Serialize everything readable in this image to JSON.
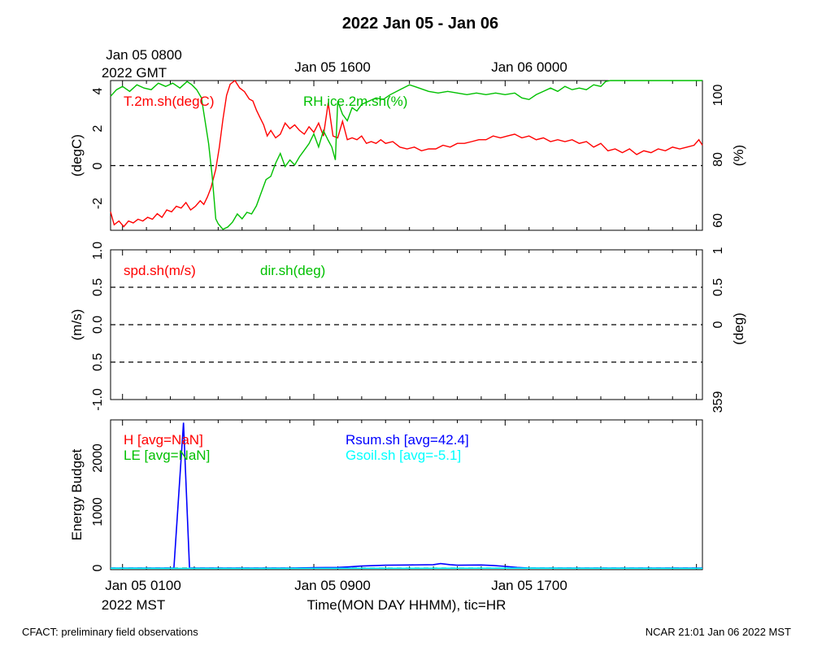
{
  "title": "2022 Jan 05 - Jan 06",
  "top_axis": {
    "labels": [
      {
        "line1": "Jan 05 0800",
        "line2": "2022 GMT"
      },
      {
        "line1": "Jan 05 1600",
        "line2": ""
      },
      {
        "line1": "Jan 06 0000",
        "line2": ""
      }
    ]
  },
  "bottom_axis": {
    "labels": [
      {
        "line1": "Jan 05 0100",
        "line2": "2022 MST"
      },
      {
        "line1": "Jan 05 0900",
        "line2": ""
      },
      {
        "line1": "Jan 05 1700",
        "line2": ""
      }
    ],
    "xlabel": "Time(MON DAY HHMM), tic=HR"
  },
  "footer": {
    "left": "CFACT: preliminary field observations",
    "right": "NCAR 21:01 Jan 06 2022 MST"
  },
  "colors": {
    "red": "#ff0000",
    "green": "#00c000",
    "blue": "#0000ff",
    "cyan": "#00ffff",
    "black": "#000000"
  },
  "chart_data": [
    {
      "type": "line",
      "panel": "temperature-humidity",
      "x_unit": "hours since Jan 05 0000 MST",
      "xlim": [
        0.5,
        25.25
      ],
      "ylabel_left": "(degC)",
      "ylabel_right": "(%)",
      "ylim_left": [
        -3.5,
        4.6
      ],
      "ylim_right": [
        58.5,
        104.3
      ],
      "yticks_left": [
        "-2",
        "0",
        "2",
        "4"
      ],
      "yticks_right": [
        "60",
        "80",
        "100"
      ],
      "reference_line_left": 0,
      "series": [
        {
          "name": "T.2m.sh(degC)",
          "axis": "left",
          "color": "#ff0000",
          "points": [
            [
              0.5,
              -2.5
            ],
            [
              0.65,
              -3.2
            ],
            [
              0.85,
              -3.0
            ],
            [
              1.05,
              -3.3
            ],
            [
              1.25,
              -3.0
            ],
            [
              1.45,
              -3.1
            ],
            [
              1.65,
              -2.9
            ],
            [
              1.85,
              -3.0
            ],
            [
              2.05,
              -2.8
            ],
            [
              2.25,
              -2.9
            ],
            [
              2.45,
              -2.6
            ],
            [
              2.65,
              -2.8
            ],
            [
              2.85,
              -2.4
            ],
            [
              3.05,
              -2.5
            ],
            [
              3.25,
              -2.2
            ],
            [
              3.45,
              -2.3
            ],
            [
              3.65,
              -2.0
            ],
            [
              3.85,
              -2.4
            ],
            [
              4.05,
              -2.2
            ],
            [
              4.25,
              -1.9
            ],
            [
              4.4,
              -2.1
            ],
            [
              4.55,
              -1.7
            ],
            [
              4.7,
              -1.2
            ],
            [
              4.9,
              -0.2
            ],
            [
              5.05,
              1.0
            ],
            [
              5.2,
              2.5
            ],
            [
              5.35,
              3.8
            ],
            [
              5.5,
              4.4
            ],
            [
              5.7,
              4.6
            ],
            [
              5.9,
              4.2
            ],
            [
              6.1,
              4.0
            ],
            [
              6.3,
              3.6
            ],
            [
              6.45,
              3.5
            ],
            [
              6.6,
              3.0
            ],
            [
              6.75,
              2.6
            ],
            [
              6.9,
              2.2
            ],
            [
              7.05,
              1.6
            ],
            [
              7.2,
              1.9
            ],
            [
              7.4,
              1.5
            ],
            [
              7.6,
              1.7
            ],
            [
              7.8,
              2.3
            ],
            [
              8.0,
              2.0
            ],
            [
              8.2,
              2.2
            ],
            [
              8.4,
              1.9
            ],
            [
              8.6,
              1.7
            ],
            [
              8.8,
              2.1
            ],
            [
              9.0,
              1.8
            ],
            [
              9.2,
              2.3
            ],
            [
              9.4,
              1.6
            ],
            [
              9.6,
              3.4
            ],
            [
              9.8,
              1.6
            ],
            [
              10.0,
              1.5
            ],
            [
              10.2,
              2.4
            ],
            [
              10.4,
              1.4
            ],
            [
              10.6,
              1.5
            ],
            [
              10.8,
              1.4
            ],
            [
              11.0,
              1.6
            ],
            [
              11.2,
              1.2
            ],
            [
              11.4,
              1.3
            ],
            [
              11.6,
              1.2
            ],
            [
              11.8,
              1.4
            ],
            [
              12.0,
              1.2
            ],
            [
              12.3,
              1.3
            ],
            [
              12.6,
              1.0
            ],
            [
              12.9,
              0.9
            ],
            [
              13.2,
              1.0
            ],
            [
              13.5,
              0.8
            ],
            [
              13.8,
              0.9
            ],
            [
              14.1,
              0.9
            ],
            [
              14.4,
              1.1
            ],
            [
              14.7,
              1.0
            ],
            [
              15.0,
              1.2
            ],
            [
              15.3,
              1.2
            ],
            [
              15.6,
              1.3
            ],
            [
              15.9,
              1.4
            ],
            [
              16.2,
              1.4
            ],
            [
              16.5,
              1.6
            ],
            [
              16.8,
              1.5
            ],
            [
              17.1,
              1.6
            ],
            [
              17.4,
              1.7
            ],
            [
              17.7,
              1.5
            ],
            [
              18.0,
              1.6
            ],
            [
              18.3,
              1.4
            ],
            [
              18.6,
              1.5
            ],
            [
              18.9,
              1.3
            ],
            [
              19.2,
              1.4
            ],
            [
              19.5,
              1.3
            ],
            [
              19.8,
              1.4
            ],
            [
              20.1,
              1.2
            ],
            [
              20.4,
              1.3
            ],
            [
              20.7,
              1.0
            ],
            [
              21.0,
              1.2
            ],
            [
              21.3,
              0.8
            ],
            [
              21.6,
              0.9
            ],
            [
              21.9,
              0.7
            ],
            [
              22.2,
              0.9
            ],
            [
              22.5,
              0.6
            ],
            [
              22.8,
              0.8
            ],
            [
              23.1,
              0.7
            ],
            [
              23.4,
              0.9
            ],
            [
              23.7,
              0.8
            ],
            [
              24.0,
              1.0
            ],
            [
              24.3,
              0.9
            ],
            [
              24.6,
              1.0
            ],
            [
              24.9,
              1.1
            ],
            [
              25.1,
              1.4
            ],
            [
              25.25,
              1.1
            ]
          ]
        },
        {
          "name": "RH.ice.2m.sh(%)",
          "axis": "right",
          "color": "#00c000",
          "points": [
            [
              0.5,
              99.5
            ],
            [
              0.75,
              101.5
            ],
            [
              1.0,
              102.5
            ],
            [
              1.3,
              101.0
            ],
            [
              1.6,
              103.0
            ],
            [
              1.9,
              102.0
            ],
            [
              2.2,
              101.5
            ],
            [
              2.5,
              103.5
            ],
            [
              2.8,
              102.5
            ],
            [
              3.1,
              103.5
            ],
            [
              3.4,
              102.0
            ],
            [
              3.7,
              104.0
            ],
            [
              3.9,
              103.0
            ],
            [
              4.1,
              101.5
            ],
            [
              4.3,
              99.0
            ],
            [
              4.45,
              92.0
            ],
            [
              4.6,
              85.0
            ],
            [
              4.75,
              75.0
            ],
            [
              4.9,
              62.0
            ],
            [
              5.0,
              60.5
            ],
            [
              5.2,
              58.8
            ],
            [
              5.4,
              59.5
            ],
            [
              5.6,
              61.0
            ],
            [
              5.8,
              63.5
            ],
            [
              6.0,
              62.0
            ],
            [
              6.2,
              64.0
            ],
            [
              6.4,
              63.5
            ],
            [
              6.6,
              66.0
            ],
            [
              6.8,
              70.0
            ],
            [
              7.0,
              74.0
            ],
            [
              7.2,
              75.0
            ],
            [
              7.4,
              79.0
            ],
            [
              7.6,
              82.0
            ],
            [
              7.8,
              78.0
            ],
            [
              8.0,
              80.0
            ],
            [
              8.2,
              78.5
            ],
            [
              8.4,
              81.0
            ],
            [
              8.6,
              83.0
            ],
            [
              8.8,
              85.0
            ],
            [
              9.0,
              88.0
            ],
            [
              9.2,
              84.0
            ],
            [
              9.4,
              89.0
            ],
            [
              9.6,
              86.0
            ],
            [
              9.75,
              84.0
            ],
            [
              9.9,
              80.0
            ],
            [
              10.0,
              98.0
            ],
            [
              10.2,
              94.0
            ],
            [
              10.4,
              92.0
            ],
            [
              10.6,
              96.0
            ],
            [
              10.8,
              95.0
            ],
            [
              11.0,
              97.0
            ],
            [
              11.3,
              98.0
            ],
            [
              11.6,
              99.0
            ],
            [
              11.9,
              98.5
            ],
            [
              12.2,
              100.0
            ],
            [
              12.6,
              101.5
            ],
            [
              13.0,
              103.0
            ],
            [
              13.4,
              102.0
            ],
            [
              13.8,
              101.0
            ],
            [
              14.2,
              100.5
            ],
            [
              14.6,
              101.0
            ],
            [
              15.0,
              100.5
            ],
            [
              15.4,
              100.0
            ],
            [
              15.8,
              100.5
            ],
            [
              16.2,
              100.0
            ],
            [
              16.6,
              100.5
            ],
            [
              17.0,
              100.0
            ],
            [
              17.4,
              100.5
            ],
            [
              17.7,
              99.0
            ],
            [
              18.0,
              98.5
            ],
            [
              18.3,
              100.0
            ],
            [
              18.6,
              101.0
            ],
            [
              18.9,
              102.0
            ],
            [
              19.2,
              101.0
            ],
            [
              19.5,
              102.5
            ],
            [
              19.8,
              101.5
            ],
            [
              20.1,
              102.0
            ],
            [
              20.4,
              101.5
            ],
            [
              20.7,
              103.0
            ],
            [
              21.0,
              102.5
            ],
            [
              21.2,
              104.0
            ],
            [
              21.4,
              104.3
            ],
            [
              21.8,
              104.3
            ],
            [
              22.2,
              104.3
            ],
            [
              22.6,
              104.3
            ],
            [
              23.0,
              104.3
            ],
            [
              23.4,
              104.3
            ],
            [
              23.8,
              104.3
            ],
            [
              24.2,
              104.3
            ],
            [
              24.6,
              104.3
            ],
            [
              25.0,
              104.3
            ],
            [
              25.25,
              104.3
            ]
          ]
        }
      ]
    },
    {
      "type": "line",
      "panel": "wind",
      "xlim": [
        0.5,
        25.25
      ],
      "ylabel_left": "(m/s)",
      "ylabel_right": "(deg)",
      "ylim_left": [
        -1.0,
        1.0
      ],
      "yticks_left": [
        "-1.0",
        "0.5",
        "0.0",
        "0.5",
        "1.0"
      ],
      "yticks_right": [
        "359",
        "0",
        "0.5",
        "1"
      ],
      "reference_lines_left": [
        -0.5,
        0.0,
        0.5
      ],
      "series": [
        {
          "name": "spd.sh(m/s)",
          "axis": "left",
          "color": "#ff0000",
          "points": []
        },
        {
          "name": "dir.sh(deg)",
          "axis": "right",
          "color": "#00c000",
          "points": []
        }
      ]
    },
    {
      "type": "line",
      "panel": "energy-budget",
      "xlim": [
        0.5,
        25.25
      ],
      "ylabel_left": "Energy Budget",
      "ylim_left": [
        -30,
        2700
      ],
      "yticks_left": [
        "0",
        "1000",
        "2000"
      ],
      "reference_line_left": 0,
      "series": [
        {
          "name": "H",
          "legend": "H [avg=NaN]",
          "color": "#ff0000",
          "points": []
        },
        {
          "name": "LE",
          "legend": "LE [avg=NaN]",
          "color": "#00c000",
          "points": []
        },
        {
          "name": "Rsum.sh",
          "legend": "Rsum.sh [avg=42.4]",
          "color": "#0000ff",
          "points": [
            [
              0.5,
              0
            ],
            [
              2.0,
              0
            ],
            [
              2.8,
              0
            ],
            [
              3.15,
              0
            ],
            [
              3.55,
              2650
            ],
            [
              3.8,
              0
            ],
            [
              5.0,
              0
            ],
            [
              7.0,
              0
            ],
            [
              8.0,
              0
            ],
            [
              9.0,
              5
            ],
            [
              10.0,
              10
            ],
            [
              10.5,
              20
            ],
            [
              11.0,
              35
            ],
            [
              12.0,
              50
            ],
            [
              13.0,
              55
            ],
            [
              14.0,
              60
            ],
            [
              14.3,
              80
            ],
            [
              14.7,
              60
            ],
            [
              15.0,
              50
            ],
            [
              16.0,
              55
            ],
            [
              16.5,
              45
            ],
            [
              17.0,
              30
            ],
            [
              17.5,
              10
            ],
            [
              18.0,
              0
            ],
            [
              20.0,
              0
            ],
            [
              22.0,
              0
            ],
            [
              24.0,
              0
            ],
            [
              25.25,
              0
            ]
          ]
        },
        {
          "name": "Gsoil.sh",
          "legend": "Gsoil.sh [avg=-5.1]",
          "color": "#00ffff",
          "points": [
            [
              0.5,
              -5
            ],
            [
              4.0,
              -6
            ],
            [
              8.0,
              -7
            ],
            [
              12.0,
              -5
            ],
            [
              16.0,
              -3
            ],
            [
              20.0,
              -5
            ],
            [
              25.25,
              -6
            ]
          ]
        }
      ]
    }
  ]
}
